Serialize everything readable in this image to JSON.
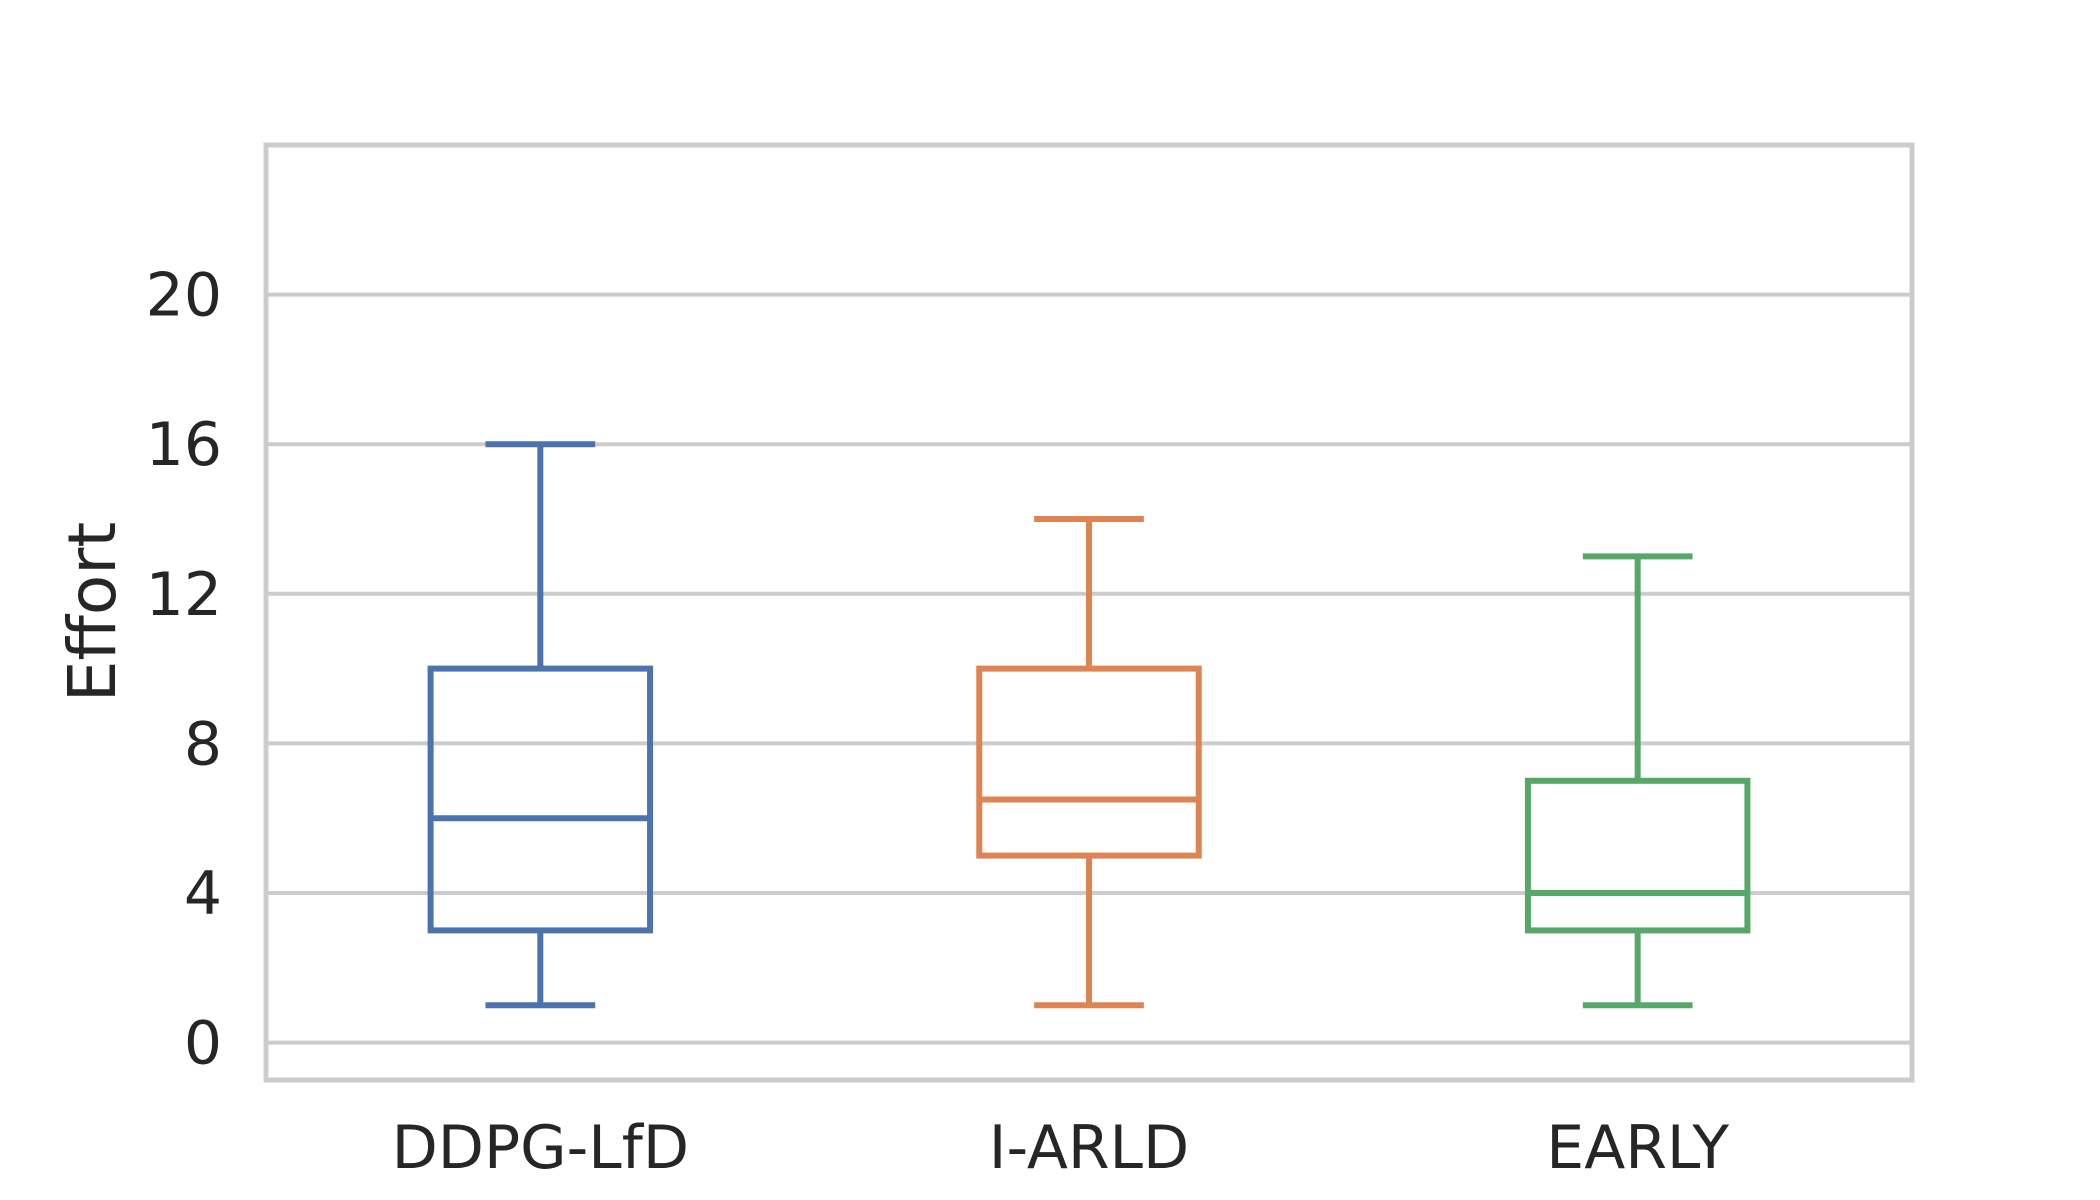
{
  "chart_data": {
    "type": "box",
    "ylabel": "Effort",
    "xlabel": "",
    "ylim": [
      -1,
      24
    ],
    "yticks": [
      0,
      4,
      8,
      12,
      16,
      20
    ],
    "grid": "horizontal",
    "categories": [
      "DDPG-LfD",
      "I-ARLD",
      "EARLY"
    ],
    "boxes": [
      {
        "category": "DDPG-LfD",
        "whisker_low": 1,
        "q1": 3,
        "median": 6,
        "q3": 10,
        "whisker_high": 16,
        "color": "#4c72b0"
      },
      {
        "category": "I-ARLD",
        "whisker_low": 1,
        "q1": 5,
        "median": 6.5,
        "q3": 10,
        "whisker_high": 14,
        "color": "#dd8452"
      },
      {
        "category": "EARLY",
        "whisker_low": 1,
        "q1": 3,
        "median": 4,
        "q3": 7,
        "whisker_high": 13,
        "color": "#55a868"
      }
    ]
  }
}
